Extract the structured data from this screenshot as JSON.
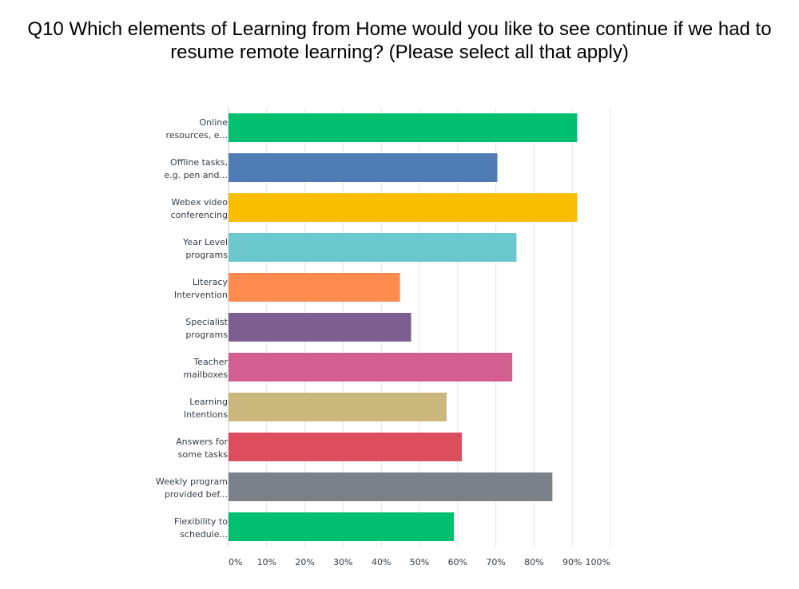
{
  "title": {
    "line1": "Q10 Which elements of Learning from Home would you like to see continue if we had to",
    "line2": "resume remote learning? (Please select all that apply)"
  },
  "chart_data": {
    "type": "bar",
    "orientation": "horizontal",
    "categories": [
      [
        "Online",
        "resources, e..."
      ],
      [
        "Offline tasks,",
        "e.g. pen and..."
      ],
      [
        "Webex video",
        "conferencing"
      ],
      [
        "Year Level",
        "programs"
      ],
      [
        "Literacy",
        "Intervention"
      ],
      [
        "Specialist",
        "programs"
      ],
      [
        "Teacher",
        "mailboxes"
      ],
      [
        "Learning",
        "Intentions"
      ],
      [
        "Answers for",
        "some tasks"
      ],
      [
        "Weekly program",
        "provided bef..."
      ],
      [
        "Flexibility to",
        "schedule..."
      ]
    ],
    "values": [
      91.3,
      70.4,
      91.3,
      75.4,
      44.9,
      47.8,
      74.3,
      57.1,
      61.1,
      84.8,
      59.0
    ],
    "colors": [
      "#00bf6f",
      "#507cb6",
      "#f9be00",
      "#6bc8cd",
      "#ff8b4f",
      "#7d5e90",
      "#d25f90",
      "#c9b77c",
      "#dc4e5e",
      "#7b8189",
      "#00bf6f"
    ],
    "x_ticks": [
      "0%",
      "10%",
      "20%",
      "30%",
      "40%",
      "50%",
      "60%",
      "70%",
      "80%",
      "90%",
      "100%"
    ],
    "xlim": [
      0,
      100
    ],
    "grid": true,
    "legend": "none"
  }
}
